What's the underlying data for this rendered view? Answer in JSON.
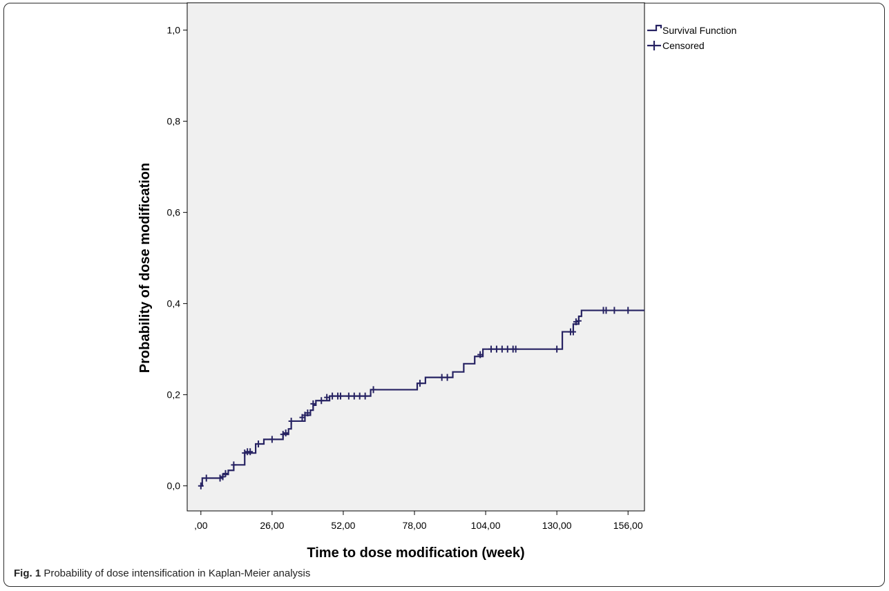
{
  "figure": {
    "label": "Fig. 1",
    "caption": "Probability of dose intensification in Kaplan-Meier analysis"
  },
  "chart_data": {
    "type": "line",
    "xlabel": "Time to dose modification (week)",
    "ylabel": "Probability of dose modification",
    "xlim": [
      -5,
      162
    ],
    "ylim": [
      -0.055,
      1.06
    ],
    "x_ticks": [
      0,
      26,
      52,
      78,
      104,
      130,
      156
    ],
    "x_tick_labels": [
      ",00",
      "26,00",
      "52,00",
      "78,00",
      "104,00",
      "130,00",
      "156,00"
    ],
    "y_ticks": [
      0.0,
      0.2,
      0.4,
      0.6,
      0.8,
      1.0
    ],
    "y_tick_labels": [
      "0,0",
      "0,2",
      "0,4",
      "0,6",
      "0,8",
      "1,0"
    ],
    "plot_background": "#f0f0f0",
    "line_color": "#262262",
    "legend_position": "top-right, outside plot",
    "series": [
      {
        "name": "Survival Function",
        "steps": [
          [
            0,
            0.0
          ],
          [
            0.5,
            0.017
          ],
          [
            8,
            0.025
          ],
          [
            10,
            0.034
          ],
          [
            12,
            0.046
          ],
          [
            16,
            0.072
          ],
          [
            20,
            0.092
          ],
          [
            23,
            0.102
          ],
          [
            30,
            0.113
          ],
          [
            32,
            0.125
          ],
          [
            33,
            0.142
          ],
          [
            38,
            0.155
          ],
          [
            40,
            0.166
          ],
          [
            41,
            0.177
          ],
          [
            42,
            0.187
          ],
          [
            47,
            0.197
          ],
          [
            62,
            0.211
          ],
          [
            79,
            0.225
          ],
          [
            82,
            0.238
          ],
          [
            92,
            0.25
          ],
          [
            96,
            0.268
          ],
          [
            100,
            0.284
          ],
          [
            103,
            0.3
          ],
          [
            132,
            0.338
          ],
          [
            136,
            0.355
          ],
          [
            138,
            0.372
          ],
          [
            139,
            0.385
          ]
        ],
        "end_x": 162
      },
      {
        "name": "Censored",
        "points": [
          [
            0,
            0.0
          ],
          [
            2,
            0.017
          ],
          [
            7,
            0.017
          ],
          [
            8,
            0.02
          ],
          [
            9,
            0.027
          ],
          [
            12,
            0.046
          ],
          [
            16,
            0.072
          ],
          [
            17,
            0.075
          ],
          [
            18,
            0.075
          ],
          [
            21,
            0.092
          ],
          [
            26,
            0.102
          ],
          [
            30,
            0.113
          ],
          [
            31,
            0.116
          ],
          [
            33,
            0.142
          ],
          [
            37,
            0.15
          ],
          [
            38,
            0.155
          ],
          [
            39,
            0.16
          ],
          [
            41,
            0.18
          ],
          [
            44,
            0.187
          ],
          [
            46,
            0.194
          ],
          [
            48,
            0.197
          ],
          [
            50,
            0.197
          ],
          [
            51,
            0.197
          ],
          [
            54,
            0.197
          ],
          [
            56,
            0.197
          ],
          [
            58,
            0.197
          ],
          [
            60,
            0.197
          ],
          [
            63,
            0.211
          ],
          [
            80,
            0.225
          ],
          [
            88,
            0.238
          ],
          [
            90,
            0.238
          ],
          [
            102,
            0.288
          ],
          [
            106,
            0.3
          ],
          [
            108,
            0.3
          ],
          [
            110,
            0.3
          ],
          [
            112,
            0.3
          ],
          [
            114,
            0.3
          ],
          [
            115,
            0.3
          ],
          [
            130,
            0.3
          ],
          [
            135,
            0.338
          ],
          [
            136,
            0.338
          ],
          [
            137,
            0.36
          ],
          [
            138,
            0.362
          ],
          [
            147,
            0.385
          ],
          [
            148,
            0.385
          ],
          [
            151,
            0.385
          ],
          [
            156,
            0.385
          ]
        ]
      }
    ]
  }
}
